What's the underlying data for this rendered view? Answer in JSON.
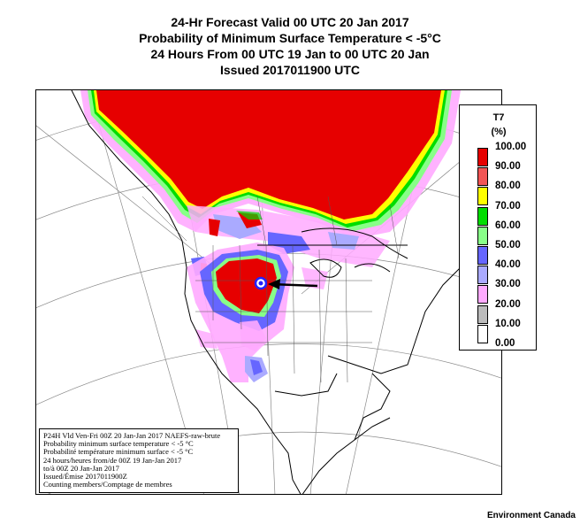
{
  "header": {
    "line1": "24-Hr Forecast Valid 00 UTC 20 Jan 2017",
    "line2": "Probability of Minimum Surface Temperature < -5°C",
    "line3": "24 Hours From 00 UTC 19 Jan to 00 UTC 20 Jan",
    "line4": "Issued 2017011900 UTC"
  },
  "legend": {
    "title": "T7",
    "unit": "(%)",
    "levels": [
      {
        "label": "100.00",
        "color": "#e60000"
      },
      {
        "label": "90.00",
        "color": "#f25555"
      },
      {
        "label": "80.00",
        "color": "#ffff00"
      },
      {
        "label": "70.00",
        "color": "#00dd00"
      },
      {
        "label": "60.00",
        "color": "#88ff88"
      },
      {
        "label": "50.00",
        "color": "#6666ff"
      },
      {
        "label": "40.00",
        "color": "#aaaaff"
      },
      {
        "label": "30.00",
        "color": "#ffaaff"
      },
      {
        "label": "20.00",
        "color": "#bbbbbb"
      },
      {
        "label": "10.00",
        "color": "#ffffff"
      },
      {
        "label": "0.00",
        "color": null
      }
    ]
  },
  "info_box": {
    "line1": "P24H Vld Ven-Fri 00Z 20 Jan-Jan 2017 NAEFS-raw-brute",
    "line2": "Probability minimum surface temperature < -5 °C",
    "line3": "Probabilité température minimum surface < -5 °C",
    "line4": "24 hours/heures from/de 00Z 19 Jan-Jan 2017",
    "line5": "to/à 00Z 20 Jan-Jan 2017",
    "line6": "Issued/Émise 2017011900Z",
    "line7": "Counting members/Comptage de membres"
  },
  "credit": "Environment Canada",
  "colors": {
    "high": "#e60000",
    "yellow": "#ffff00",
    "green": "#00dd00",
    "light_green": "#88ff88",
    "blue": "#6666ff",
    "lavender": "#aaaaff",
    "pink": "#ffaaff",
    "grey": "#bbbbbb"
  },
  "map": {
    "highlight_marker": "circled-location-marker",
    "arrow": "pointer-arrow"
  }
}
